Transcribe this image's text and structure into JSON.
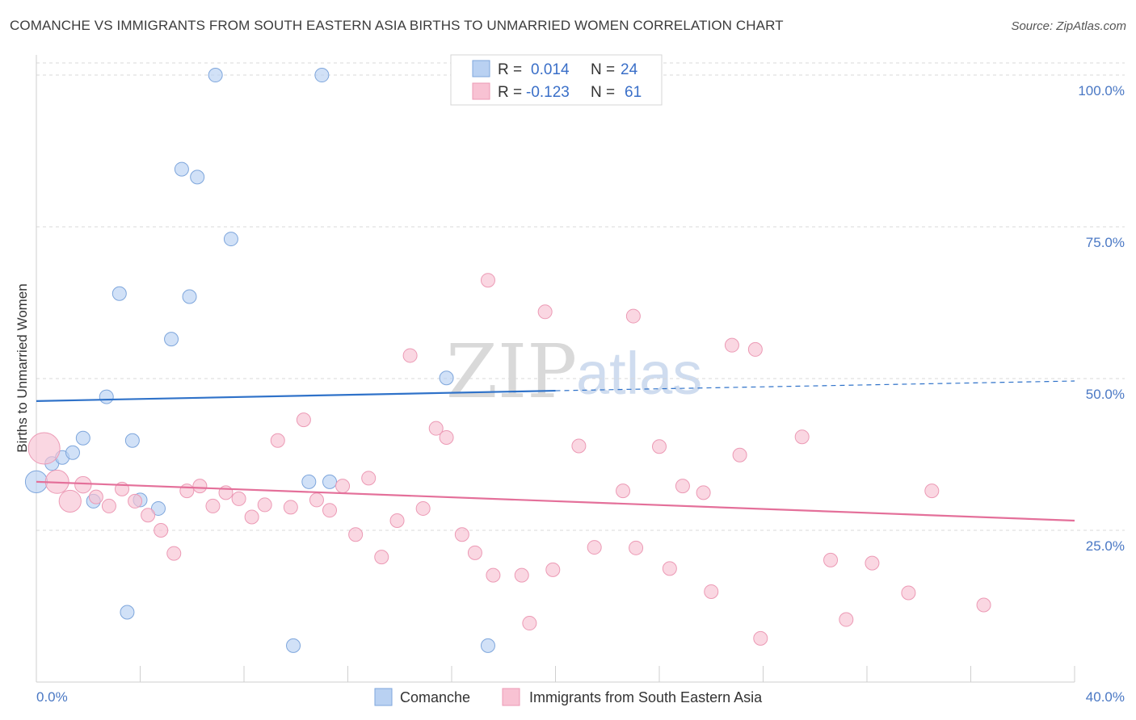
{
  "title": "COMANCHE VS IMMIGRANTS FROM SOUTH EASTERN ASIA BIRTHS TO UNMARRIED WOMEN CORRELATION CHART",
  "source": "Source: ZipAtlas.com",
  "watermark": {
    "zip": "ZIP",
    "atlas": "atlas"
  },
  "colors": {
    "comanche_fill": "#b9d1f2",
    "comanche_stroke": "#7ea6dc",
    "comanche_line": "#2f72c9",
    "immigrants_fill": "#f8c2d3",
    "immigrants_stroke": "#ec9ab5",
    "immigrants_line": "#e4709a",
    "tick_label": "#4a78c4",
    "grid": "#d8d8d8"
  },
  "legend": {
    "rows": [
      {
        "r_label": "R =",
        "r_value": "0.014",
        "n_label": "N =",
        "n_value": "24"
      },
      {
        "r_label": "R =",
        "r_value": "-0.123",
        "n_label": "N =",
        "n_value": "61"
      }
    ]
  },
  "chart_data": {
    "type": "scatter",
    "title": "COMANCHE VS IMMIGRANTS FROM SOUTH EASTERN ASIA BIRTHS TO UNMARRIED WOMEN CORRELATION CHART",
    "xlabel": "",
    "ylabel": "Births to Unmarried Women",
    "xlim": [
      0,
      40
    ],
    "ylim": [
      0,
      102
    ],
    "x_tick_labels": [
      "0.0%",
      "40.0%"
    ],
    "y_ticks": [
      25,
      50,
      75,
      100
    ],
    "y_tick_labels": [
      "25.0%",
      "50.0%",
      "75.0%",
      "100.0%"
    ],
    "grid": "horizontal dashed",
    "legend_position": "top-center",
    "series": [
      {
        "name": "Comanche",
        "r": 0.014,
        "n": 24,
        "trend": {
          "x0": 0,
          "y0": 46.3,
          "x1": 20,
          "y1": 48.0,
          "dashed_to_x": 40,
          "dashed_to_y": 49.6
        },
        "points": [
          [
            0.0,
            33.0,
            1.6
          ],
          [
            0.6,
            36.0,
            1
          ],
          [
            1.0,
            37.0,
            1
          ],
          [
            1.4,
            37.8,
            1
          ],
          [
            1.8,
            40.2,
            1
          ],
          [
            2.2,
            29.8,
            1
          ],
          [
            2.7,
            47.0,
            1
          ],
          [
            3.2,
            64.0,
            1
          ],
          [
            3.5,
            11.5,
            1
          ],
          [
            3.7,
            39.8,
            1
          ],
          [
            4.0,
            30.0,
            1
          ],
          [
            4.7,
            28.6,
            1
          ],
          [
            5.2,
            56.5,
            1
          ],
          [
            5.6,
            84.5,
            1
          ],
          [
            5.9,
            63.5,
            1
          ],
          [
            6.2,
            83.2,
            1
          ],
          [
            6.9,
            100.0,
            1
          ],
          [
            7.5,
            73.0,
            1
          ],
          [
            9.9,
            6.0,
            1
          ],
          [
            11.0,
            100.0,
            1
          ],
          [
            10.5,
            33.0,
            1
          ],
          [
            11.3,
            33.0,
            1
          ],
          [
            15.8,
            50.1,
            1
          ],
          [
            17.4,
            6.0,
            1
          ]
        ]
      },
      {
        "name": "Immigrants from South Eastern Asia",
        "r": -0.123,
        "n": 61,
        "trend": {
          "x0": 0,
          "y0": 33.0,
          "x1": 40,
          "y1": 26.6
        },
        "points": [
          [
            0.3,
            38.5,
            2.3
          ],
          [
            0.8,
            33.0,
            1.7
          ],
          [
            1.3,
            29.8,
            1.6
          ],
          [
            1.8,
            32.5,
            1.2
          ],
          [
            2.3,
            30.5,
            1
          ],
          [
            2.8,
            29.0,
            1
          ],
          [
            3.3,
            31.8,
            1
          ],
          [
            3.8,
            29.8,
            1
          ],
          [
            4.3,
            27.5,
            1
          ],
          [
            4.8,
            25.0,
            1
          ],
          [
            5.3,
            21.2,
            1
          ],
          [
            5.8,
            31.5,
            1
          ],
          [
            6.3,
            32.3,
            1
          ],
          [
            6.8,
            29.0,
            1
          ],
          [
            7.3,
            31.2,
            1
          ],
          [
            7.8,
            30.2,
            1
          ],
          [
            8.3,
            27.2,
            1
          ],
          [
            8.8,
            29.2,
            1
          ],
          [
            9.3,
            39.8,
            1
          ],
          [
            9.8,
            28.8,
            1
          ],
          [
            10.3,
            43.2,
            1
          ],
          [
            10.8,
            30.0,
            1
          ],
          [
            11.3,
            28.3,
            1
          ],
          [
            11.8,
            32.3,
            1
          ],
          [
            12.3,
            24.3,
            1
          ],
          [
            12.8,
            33.6,
            1
          ],
          [
            13.3,
            20.6,
            1
          ],
          [
            13.9,
            26.6,
            1
          ],
          [
            14.4,
            53.8,
            1
          ],
          [
            14.9,
            28.6,
            1
          ],
          [
            15.4,
            41.8,
            1
          ],
          [
            15.8,
            40.3,
            1
          ],
          [
            16.4,
            24.3,
            1
          ],
          [
            16.9,
            21.3,
            1
          ],
          [
            17.4,
            66.2,
            1
          ],
          [
            17.6,
            17.6,
            1
          ],
          [
            18.7,
            17.6,
            1
          ],
          [
            19.0,
            9.7,
            1
          ],
          [
            19.6,
            61.0,
            1
          ],
          [
            19.9,
            18.5,
            1
          ],
          [
            20.9,
            38.9,
            1
          ],
          [
            21.5,
            22.2,
            1
          ],
          [
            22.6,
            31.5,
            1
          ],
          [
            23.0,
            60.3,
            1
          ],
          [
            23.1,
            22.1,
            1
          ],
          [
            24.0,
            38.8,
            1
          ],
          [
            24.4,
            18.7,
            1
          ],
          [
            24.9,
            32.3,
            1
          ],
          [
            25.7,
            31.2,
            1
          ],
          [
            26.0,
            14.9,
            1
          ],
          [
            26.8,
            55.5,
            1
          ],
          [
            27.1,
            37.4,
            1
          ],
          [
            27.7,
            54.8,
            1
          ],
          [
            27.9,
            7.2,
            1
          ],
          [
            29.5,
            40.4,
            1
          ],
          [
            30.6,
            20.1,
            1
          ],
          [
            31.2,
            10.3,
            1
          ],
          [
            32.2,
            19.6,
            1
          ],
          [
            33.6,
            14.7,
            1
          ],
          [
            34.5,
            31.5,
            1
          ],
          [
            36.5,
            12.7,
            1
          ]
        ]
      }
    ]
  }
}
